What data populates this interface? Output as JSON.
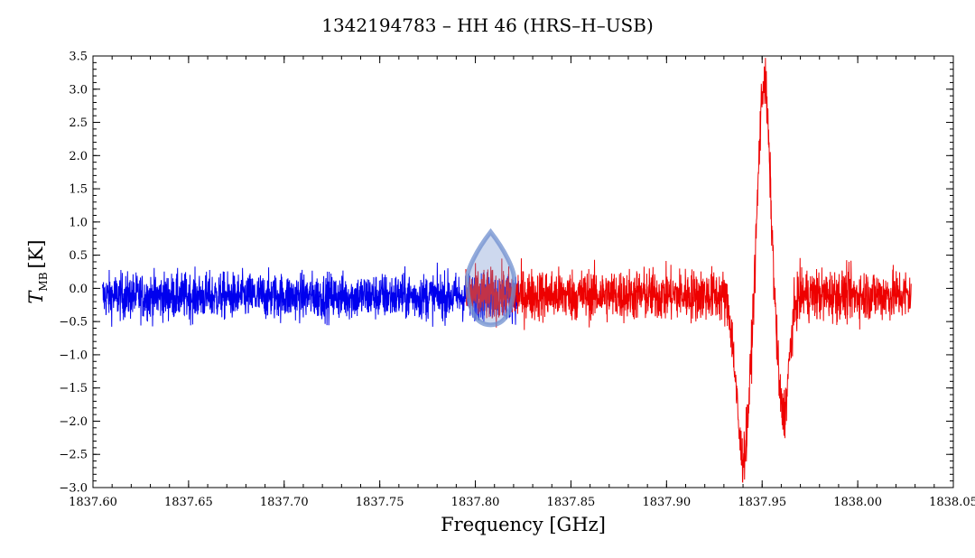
{
  "chart_data": {
    "type": "line",
    "title": "1342194783 – HH 46 (HRS–H–USB)",
    "xlabel": "Frequency [GHz]",
    "ylabel_main": "T",
    "ylabel_sub": "MB",
    "ylabel_unit": "[K]",
    "xlim": [
      1837.6,
      1838.05
    ],
    "ylim": [
      -3.0,
      3.5
    ],
    "x_ticks": [
      "1837.60",
      "1837.65",
      "1837.70",
      "1837.75",
      "1837.80",
      "1837.85",
      "1837.90",
      "1837.95",
      "1838.00",
      "1838.05"
    ],
    "y_ticks": [
      "−3.0",
      "−2.5",
      "−2.0",
      "−1.5",
      "−1.0",
      "−0.5",
      "0.0",
      "0.5",
      "1.0",
      "1.5",
      "2.0",
      "2.5",
      "3.0",
      "3.5"
    ],
    "grid": false,
    "series": [
      {
        "color": "#0000ee",
        "x_range": [
          1837.605,
          1837.823
        ],
        "noise_rms": 0.25,
        "baseline": -0.12
      },
      {
        "color": "#ee0000",
        "x_range": [
          1837.795,
          1838.028
        ],
        "noise_rms": 0.28,
        "baseline": -0.1,
        "features": [
          {
            "kind": "absorption",
            "center": 1837.94,
            "depth": -2.45,
            "width": 0.0035
          },
          {
            "kind": "emission",
            "center": 1837.951,
            "peak": 3.25,
            "width": 0.003
          },
          {
            "kind": "absorption",
            "center": 1837.961,
            "depth": -1.8,
            "width": 0.003
          }
        ]
      }
    ]
  },
  "overlay": {
    "name": "selection-marker",
    "x": 1837.808,
    "y_top": 0.85,
    "y_bottom": -0.55,
    "color": "#6f8fcf"
  }
}
